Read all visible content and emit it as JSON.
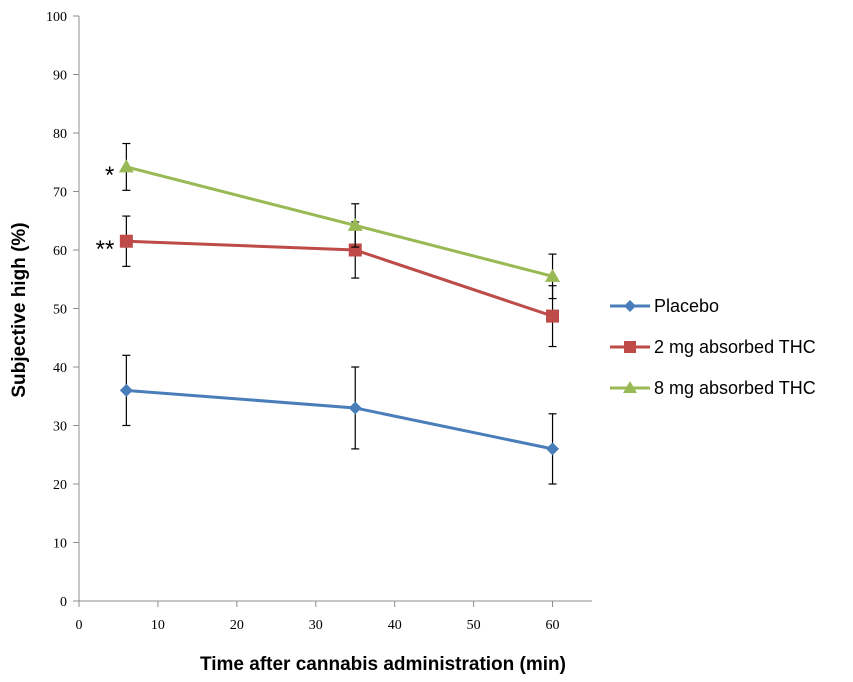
{
  "chart_data": {
    "type": "line",
    "title": "",
    "xlabel": "Time after cannabis administration (min)",
    "ylabel": "Subjective high (%)",
    "xlim": [
      0,
      65
    ],
    "ylim": [
      0,
      100
    ],
    "xticks": [
      0,
      10,
      20,
      30,
      40,
      50,
      60
    ],
    "yticks": [
      0,
      10,
      20,
      30,
      40,
      50,
      60,
      70,
      80,
      90,
      100
    ],
    "grid": false,
    "legend_position": "right",
    "series": [
      {
        "name": "Placebo",
        "color": "#4a7ebb",
        "marker": "diamond",
        "x": [
          6,
          35,
          60
        ],
        "y": [
          36,
          33,
          26
        ],
        "error": [
          6,
          7,
          6
        ]
      },
      {
        "name": "2 mg absorbed THC",
        "color": "#be4b48",
        "marker": "square",
        "x": [
          6,
          35,
          60
        ],
        "y": [
          61.5,
          60,
          48.7
        ],
        "error": [
          4.3,
          4.8,
          5.2
        ]
      },
      {
        "name": "8 mg absorbed THC",
        "color": "#98b954",
        "marker": "triangle",
        "x": [
          6,
          35,
          60
        ],
        "y": [
          74.2,
          64.2,
          55.5
        ],
        "error": [
          4,
          3.7,
          3.8
        ]
      }
    ],
    "annotations": [
      {
        "text": "*",
        "x": 6,
        "y": 74.2
      },
      {
        "text": "**",
        "x": 6,
        "y": 61.5
      }
    ]
  }
}
